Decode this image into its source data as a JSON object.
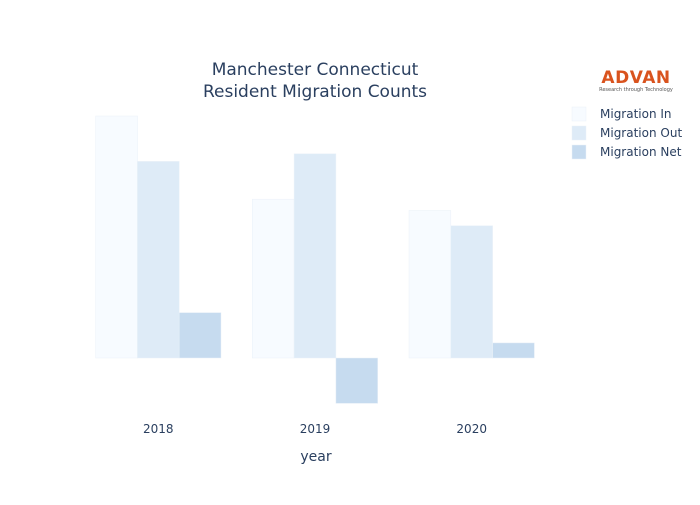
{
  "chart_data": {
    "type": "bar",
    "title_lines": [
      "Manchester Connecticut",
      "Resident Migration Counts"
    ],
    "xlabel": "year",
    "ylabel": "",
    "categories": [
      "2018",
      "2019",
      "2020"
    ],
    "series": [
      {
        "name": "Migration In",
        "values": [
          1600,
          1050,
          975
        ],
        "color": "#f7fbff"
      },
      {
        "name": "Migration Out",
        "values": [
          1300,
          1350,
          875
        ],
        "color": "#deebf7"
      },
      {
        "name": "Migration Net",
        "values": [
          300,
          -300,
          100
        ],
        "color": "#c6dbef"
      }
    ],
    "ylim": [
      -300,
      1600
    ],
    "grid": false,
    "legend_position": "top-right"
  },
  "logo": {
    "name": "ADVAN",
    "tagline": "Research through Technology"
  }
}
